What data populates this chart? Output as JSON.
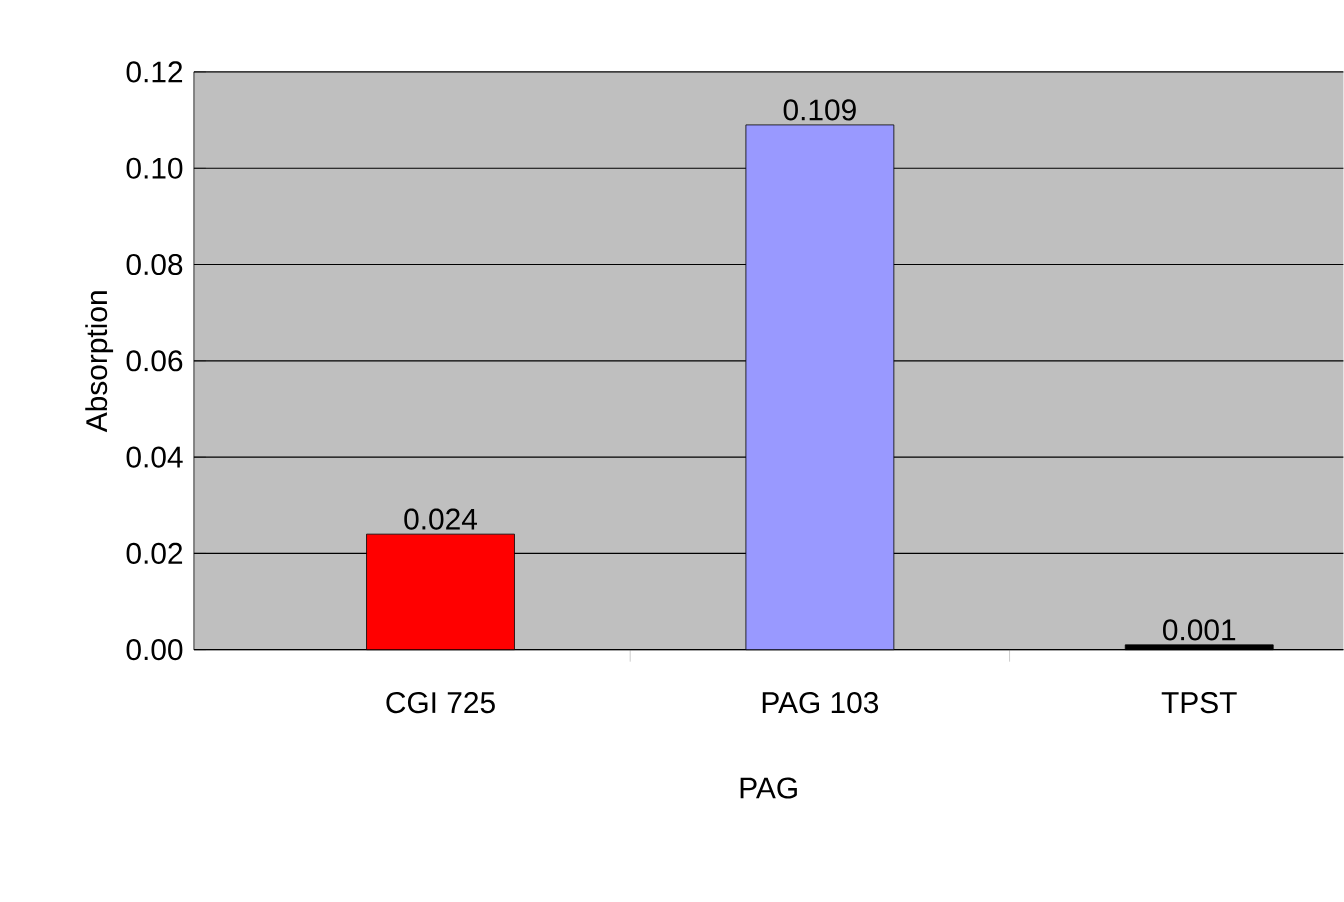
{
  "chart_data": {
    "type": "bar",
    "xlabel": "PAG",
    "ylabel": "Absorption",
    "categories": [
      "CGI 725",
      "PAG 103",
      "TPST"
    ],
    "values": [
      0.024,
      0.109,
      0.001
    ],
    "colors": [
      "#ff0000",
      "#9999ff",
      "#000000"
    ],
    "value_labels": [
      "0.024",
      "0.109",
      "0.001"
    ],
    "ylim": [
      0,
      0.12
    ],
    "yticks": [
      {
        "value": 0,
        "label": "0.00"
      },
      {
        "value": 0.02,
        "label": "0.02"
      },
      {
        "value": 0.04,
        "label": "0.04"
      },
      {
        "value": 0.06,
        "label": "0.06"
      },
      {
        "value": 0.08,
        "label": "0.08"
      },
      {
        "value": 0.1,
        "label": "0.10"
      },
      {
        "value": 0.12,
        "label": "0.12"
      }
    ],
    "grid": "y"
  }
}
